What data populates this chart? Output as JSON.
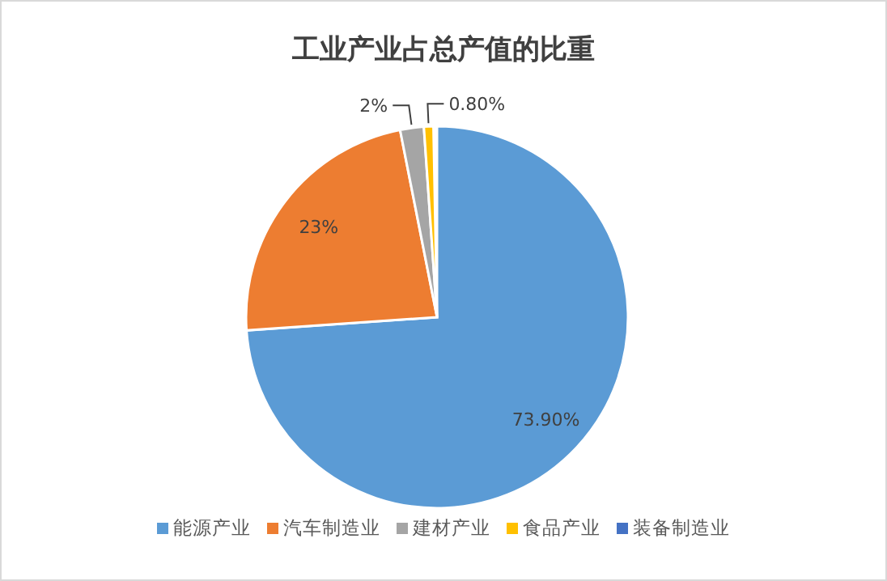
{
  "chart_data": {
    "type": "pie",
    "title": "工业产业占总产值的比重",
    "categories": [
      "能源产业",
      "汽车制造业",
      "建材产业",
      "食品产业",
      "装备制造业"
    ],
    "values": [
      73.9,
      23,
      2,
      0.8,
      0
    ],
    "colors": [
      "#5b9bd5",
      "#ed7d31",
      "#a5a5a5",
      "#ffc000",
      "#4472c4"
    ],
    "value_labels": [
      "73.90%",
      "23%",
      "2%",
      "0.80%",
      null
    ],
    "legend": "bottom"
  }
}
